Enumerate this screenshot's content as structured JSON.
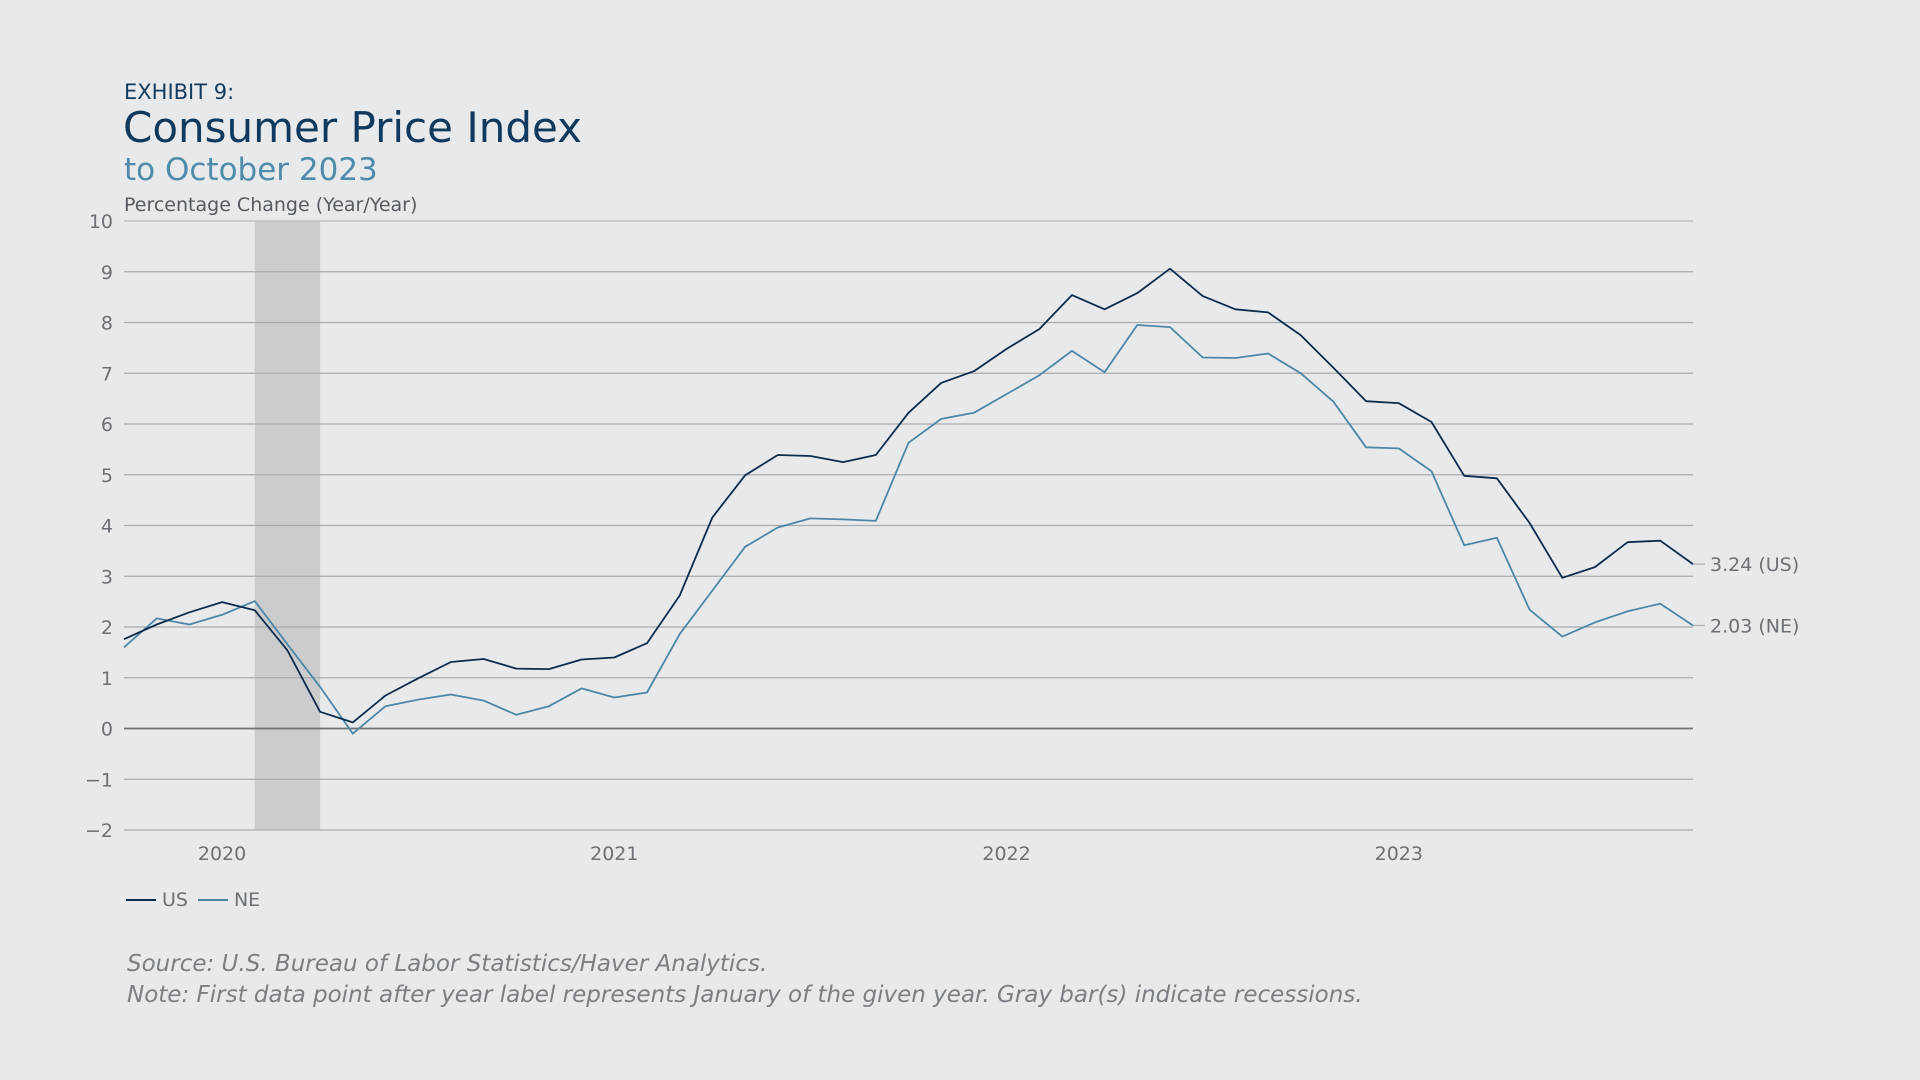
{
  "header": {
    "exhibit": "EXHIBIT 9:",
    "title": "Consumer Price Index",
    "subtitle": "to October 2023"
  },
  "footer": {
    "source": "Source: U.S. Bureau of Labor Statistics/Haver Analytics.",
    "note": "Note: First data point after year label represents January of the given year. Gray bar(s) indicate recessions."
  },
  "chart_data": {
    "type": "line",
    "title": "Consumer Price Index",
    "subtitle": "to October 2023",
    "ylabel": "Percentage Change (Year/Year)",
    "ylim": [
      -2,
      10
    ],
    "yticks": [
      "10",
      "9",
      "8",
      "7",
      "6",
      "5",
      "4",
      "3",
      "2",
      "1",
      "0",
      "−1",
      "−2"
    ],
    "ytick_values": [
      10,
      9,
      8,
      7,
      6,
      5,
      4,
      3,
      2,
      1,
      0,
      -1,
      -2
    ],
    "xticks": [
      "2020",
      "2021",
      "2022",
      "2023"
    ],
    "x_start": "2019-10",
    "x_end": "2023-10",
    "recessions": [
      [
        "2020-02",
        "2020-04"
      ]
    ],
    "grid": true,
    "legend": "bottom-left",
    "series": [
      {
        "name": "US",
        "color": "#0d2c4b",
        "end_label": "3.24 (US)",
        "values": [
          1.76,
          2.05,
          2.29,
          2.49,
          2.33,
          1.54,
          0.33,
          0.12,
          0.65,
          0.99,
          1.31,
          1.37,
          1.18,
          1.17,
          1.36,
          1.4,
          1.68,
          2.62,
          4.16,
          4.99,
          5.39,
          5.37,
          5.25,
          5.39,
          6.22,
          6.81,
          7.04,
          7.48,
          7.87,
          8.54,
          8.26,
          8.58,
          9.06,
          8.52,
          8.26,
          8.2,
          7.75,
          7.11,
          6.45,
          6.41,
          6.04,
          4.98,
          4.93,
          4.05,
          2.97,
          3.18,
          3.67,
          3.7,
          3.24
        ]
      },
      {
        "name": "NE",
        "color": "#4d87a6",
        "end_label": "2.03 (NE)",
        "values": [
          1.6,
          2.17,
          2.05,
          2.24,
          2.51,
          1.66,
          0.82,
          -0.1,
          0.44,
          0.57,
          0.67,
          0.55,
          0.27,
          0.44,
          0.79,
          0.61,
          0.71,
          1.86,
          2.72,
          3.58,
          3.96,
          4.14,
          4.12,
          4.09,
          5.63,
          6.1,
          6.22,
          6.59,
          6.96,
          7.44,
          7.02,
          7.95,
          7.91,
          7.31,
          7.3,
          7.39,
          7.0,
          6.44,
          5.54,
          5.52,
          5.07,
          3.61,
          3.76,
          2.34,
          1.81,
          2.09,
          2.31,
          2.46,
          2.03
        ]
      }
    ]
  }
}
